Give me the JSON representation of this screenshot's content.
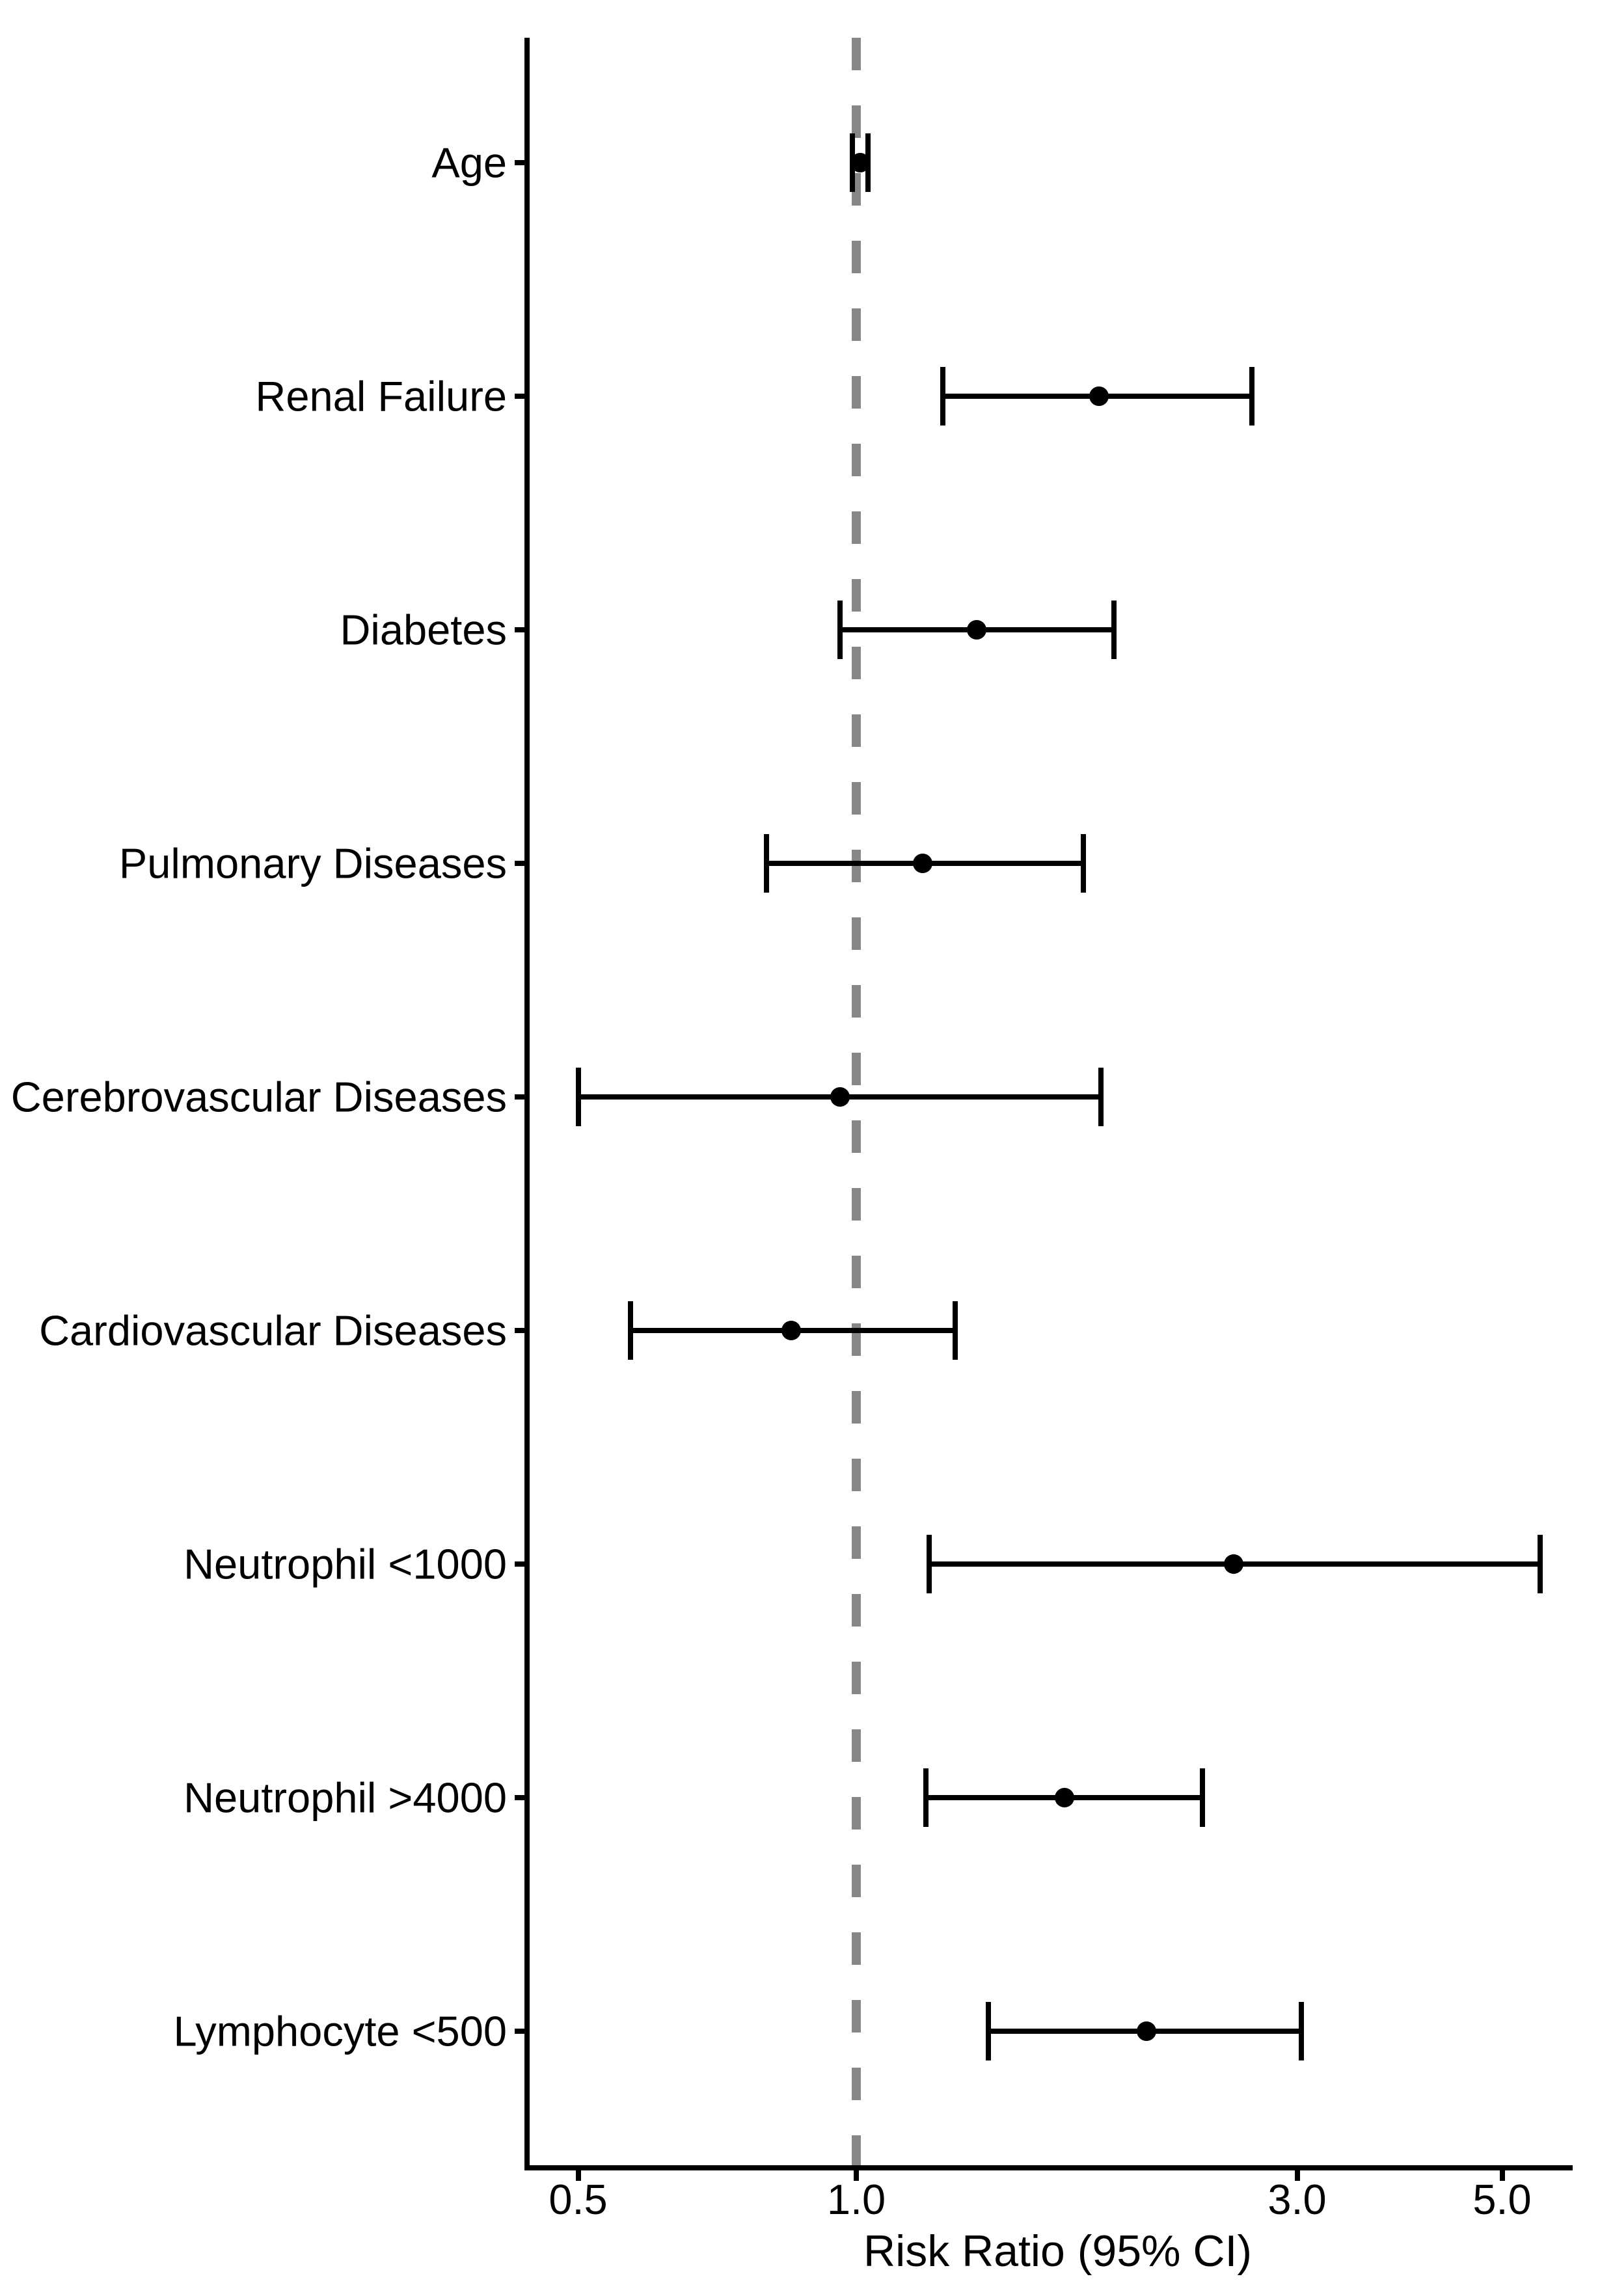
{
  "chart_data": {
    "type": "scatter",
    "subtype": "forest-plot",
    "title": "",
    "xlabel": "Risk Ratio (95% CI)",
    "ylabel": "",
    "x_scale": "log10",
    "xlim": [
      0.44,
      6.0
    ],
    "x_ticks": [
      0.5,
      1.0,
      3.0,
      5.0
    ],
    "x_tick_labels": [
      "0.5",
      "1.0",
      "3.0",
      "5.0"
    ],
    "reference_line": {
      "value": 1.0,
      "style": "dashed",
      "color": "#878787"
    },
    "grid": false,
    "legend": false,
    "categories": [
      "Age",
      "Renal Failure",
      "Diabetes",
      "Pulmonary Diseases",
      "Cerebrovascular Diseases",
      "Cardiovascular Diseases",
      "Neutrophil <1000",
      "Neutrophil >4000",
      "Lymphocyte <500"
    ],
    "series": [
      {
        "name": "Risk Ratio (95% CI)",
        "estimates": [
          1.01,
          1.83,
          1.35,
          1.18,
          0.96,
          0.85,
          2.56,
          1.68,
          2.06
        ],
        "ci_lower": [
          0.99,
          1.24,
          0.96,
          0.8,
          0.5,
          0.57,
          1.2,
          1.19,
          1.39
        ],
        "ci_upper": [
          1.03,
          2.68,
          1.9,
          1.76,
          1.84,
          1.28,
          5.5,
          2.37,
          3.03
        ]
      }
    ],
    "colors": {
      "marker": "#000000",
      "axis": "#000000",
      "text": "#000000",
      "reference_line": "#878787",
      "background": "#ffffff"
    }
  }
}
